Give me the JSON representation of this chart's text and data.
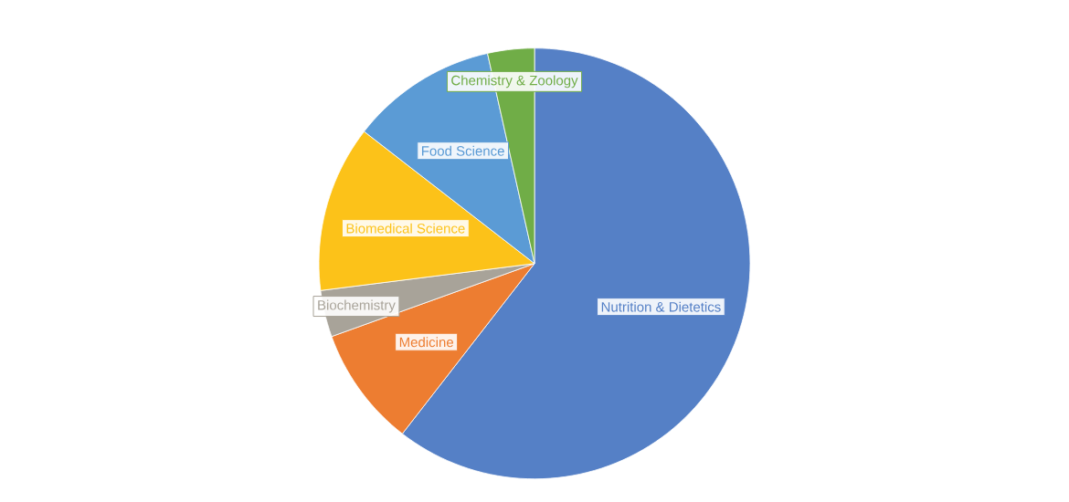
{
  "chart_data": {
    "type": "pie",
    "categories": [
      "Nutrition & Dietetics",
      "Medicine",
      "Biochemistry",
      "Biomedical Science",
      "Food Science",
      "Chemistry & Zoology"
    ],
    "values": [
      60.5,
      9,
      3.5,
      12.5,
      11,
      3.5
    ],
    "colors": [
      "#5580c6",
      "#ed7d31",
      "#a8a399",
      "#fcc219",
      "#5b9bd5",
      "#70ad47"
    ]
  }
}
